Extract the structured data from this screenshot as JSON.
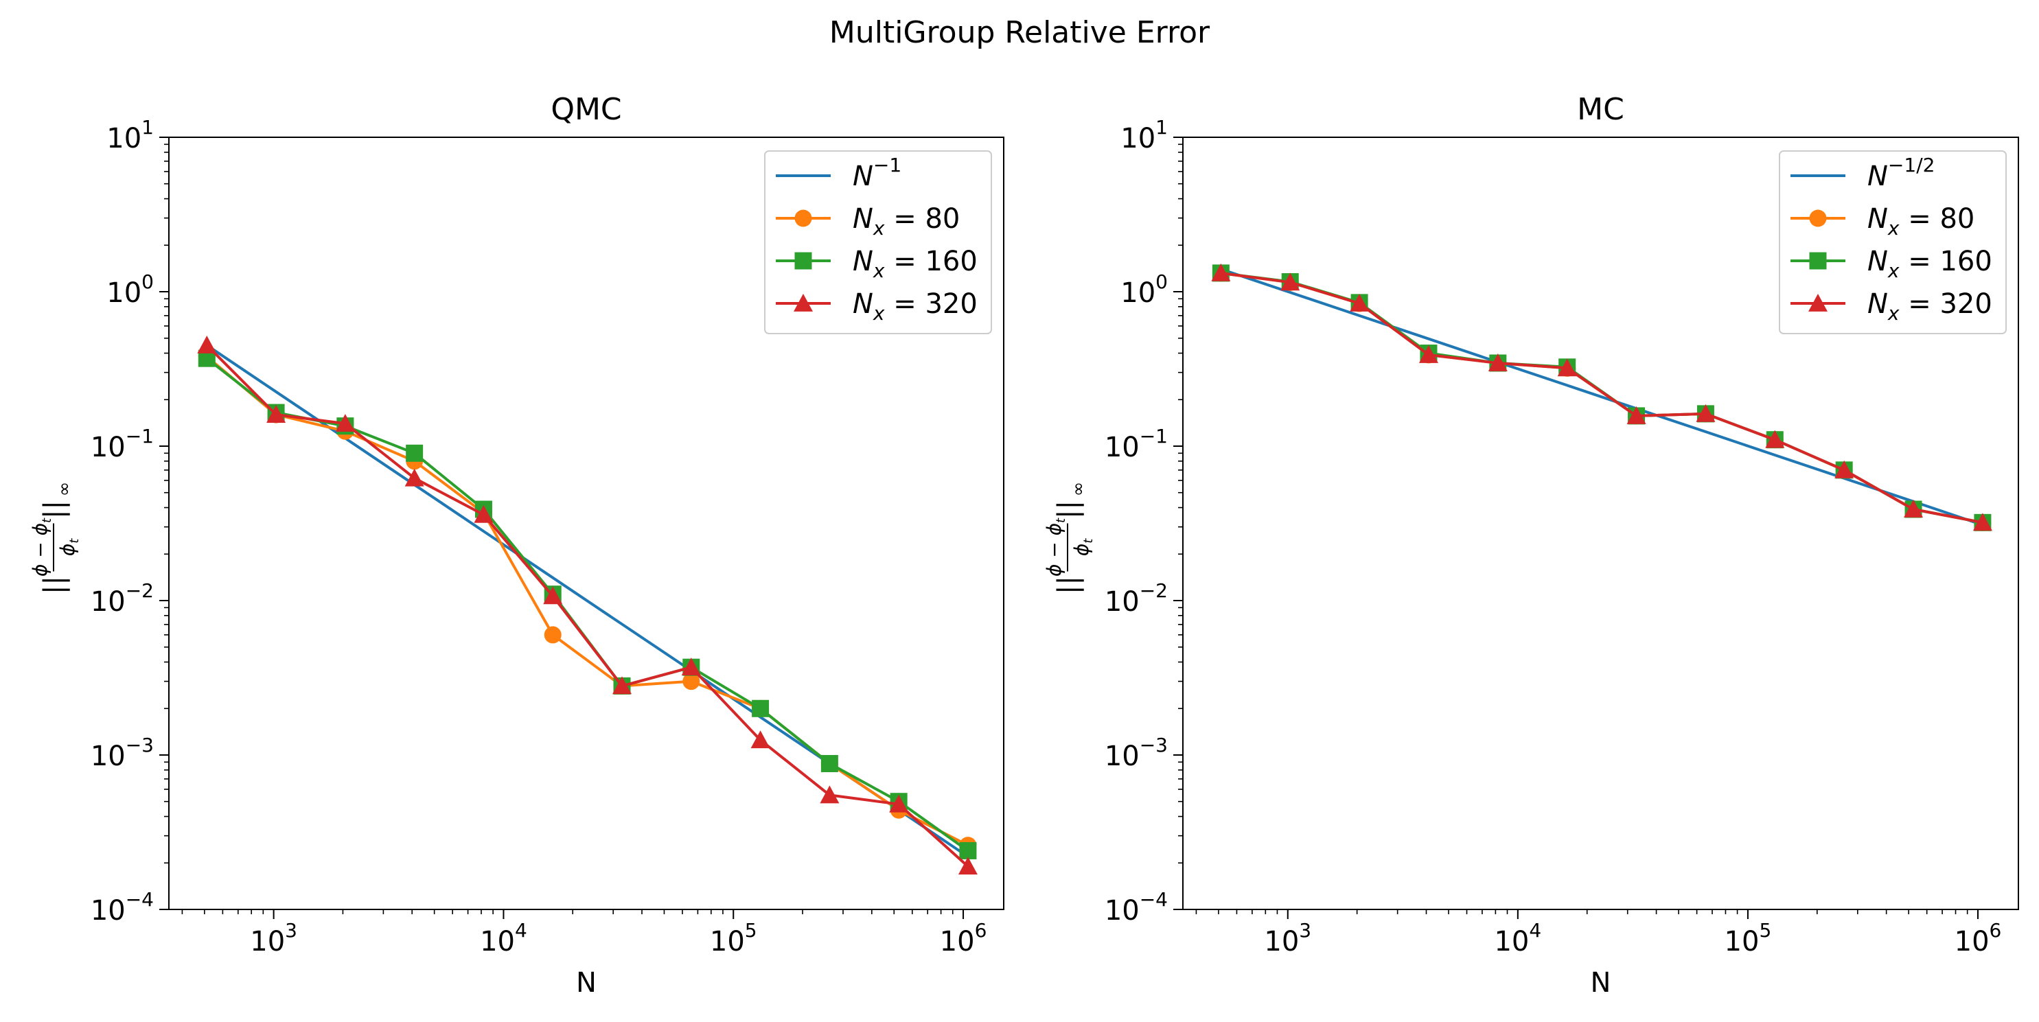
{
  "suptitle": "MultiGroup Relative Error",
  "colors": {
    "ref": "#1f77b4",
    "nx80": "#ff7f0e",
    "nx160": "#2ca02c",
    "nx320": "#d62728"
  },
  "chart_data": [
    {
      "type": "line",
      "title": "QMC",
      "xlabel": "N",
      "ylabel": "||(φ − φ_t)/φ_t||_∞",
      "xscale": "log",
      "yscale": "log",
      "xlim": [
        350,
        1500000
      ],
      "ylim": [
        0.0001,
        10
      ],
      "xticks": [
        {
          "base": "10",
          "exp": "3"
        },
        {
          "base": "10",
          "exp": "4"
        },
        {
          "base": "10",
          "exp": "5"
        },
        {
          "base": "10",
          "exp": "6"
        }
      ],
      "yticks": [
        {
          "base": "10",
          "exp": "−4"
        },
        {
          "base": "10",
          "exp": "−3"
        },
        {
          "base": "10",
          "exp": "−2"
        },
        {
          "base": "10",
          "exp": "−1"
        },
        {
          "base": "10",
          "exp": "0"
        },
        {
          "base": "10",
          "exp": "1"
        }
      ],
      "legend_position": "top-right",
      "x": [
        512,
        1024,
        2048,
        4096,
        8192,
        16384,
        32768,
        65536,
        131072,
        262144,
        524288,
        1048576
      ],
      "series": [
        {
          "label_base": "N",
          "label_sub": "",
          "label_sup": "−1",
          "label_rest": "",
          "marker": "none",
          "color_key": "ref",
          "values": [
            0.45,
            0.225,
            0.1125,
            0.0562,
            0.0281,
            0.01406,
            0.00703,
            0.00352,
            0.00176,
            0.00088,
            0.00044,
            0.00022
          ]
        },
        {
          "label_base": "N",
          "label_sub": "x",
          "label_sup": "",
          "label_rest": " = 80",
          "marker": "circle",
          "color_key": "nx80",
          "values": [
            0.38,
            0.16,
            0.125,
            0.08,
            0.037,
            0.006,
            0.0028,
            0.003,
            0.002,
            0.00088,
            0.00044,
            0.00026
          ]
        },
        {
          "label_base": "N",
          "label_sub": "x",
          "label_sup": "",
          "label_rest": " = 160",
          "marker": "square",
          "color_key": "nx160",
          "values": [
            0.37,
            0.165,
            0.135,
            0.09,
            0.039,
            0.011,
            0.0028,
            0.0037,
            0.002,
            0.00088,
            0.0005,
            0.00024
          ]
        },
        {
          "label_base": "N",
          "label_sub": "x",
          "label_sup": "",
          "label_rest": " = 320",
          "marker": "triangle",
          "color_key": "nx320",
          "values": [
            0.45,
            0.16,
            0.14,
            0.062,
            0.036,
            0.0107,
            0.0028,
            0.0037,
            0.00125,
            0.00055,
            0.00048,
            0.00019
          ]
        }
      ]
    },
    {
      "type": "line",
      "title": "MC",
      "xlabel": "N",
      "ylabel": "||(φ − φ_t)/φ_t||_∞",
      "xscale": "log",
      "yscale": "log",
      "xlim": [
        350,
        1500000
      ],
      "ylim": [
        0.0001,
        10
      ],
      "xticks": [
        {
          "base": "10",
          "exp": "3"
        },
        {
          "base": "10",
          "exp": "4"
        },
        {
          "base": "10",
          "exp": "5"
        },
        {
          "base": "10",
          "exp": "6"
        }
      ],
      "yticks": [
        {
          "base": "10",
          "exp": "−4"
        },
        {
          "base": "10",
          "exp": "−3"
        },
        {
          "base": "10",
          "exp": "−2"
        },
        {
          "base": "10",
          "exp": "−1"
        },
        {
          "base": "10",
          "exp": "0"
        },
        {
          "base": "10",
          "exp": "1"
        }
      ],
      "legend_position": "top-right",
      "x": [
        512,
        1024,
        2048,
        4096,
        8192,
        16384,
        32768,
        65536,
        131072,
        262144,
        524288,
        1048576
      ],
      "series": [
        {
          "label_base": "N",
          "label_sub": "",
          "label_sup": "−1/2",
          "label_rest": "",
          "marker": "none",
          "color_key": "ref",
          "values": [
            1.4,
            0.99,
            0.7,
            0.495,
            0.35,
            0.2475,
            0.175,
            0.124,
            0.0875,
            0.0619,
            0.0438,
            0.0309
          ]
        },
        {
          "label_base": "N",
          "label_sub": "x",
          "label_sup": "",
          "label_rest": " = 80",
          "marker": "circle",
          "color_key": "nx80",
          "values": [
            1.32,
            1.15,
            0.84,
            0.39,
            0.345,
            0.32,
            0.157,
            0.162,
            0.11,
            0.07,
            0.039,
            0.032
          ]
        },
        {
          "label_base": "N",
          "label_sub": "x",
          "label_sup": "",
          "label_rest": " = 160",
          "marker": "square",
          "color_key": "nx160",
          "values": [
            1.32,
            1.16,
            0.85,
            0.4,
            0.345,
            0.325,
            0.157,
            0.162,
            0.11,
            0.07,
            0.039,
            0.032
          ]
        },
        {
          "label_base": "N",
          "label_sub": "x",
          "label_sup": "",
          "label_rest": " = 320",
          "marker": "triangle",
          "color_key": "nx320",
          "values": [
            1.32,
            1.15,
            0.84,
            0.39,
            0.345,
            0.32,
            0.157,
            0.162,
            0.11,
            0.07,
            0.039,
            0.032
          ]
        }
      ]
    }
  ]
}
